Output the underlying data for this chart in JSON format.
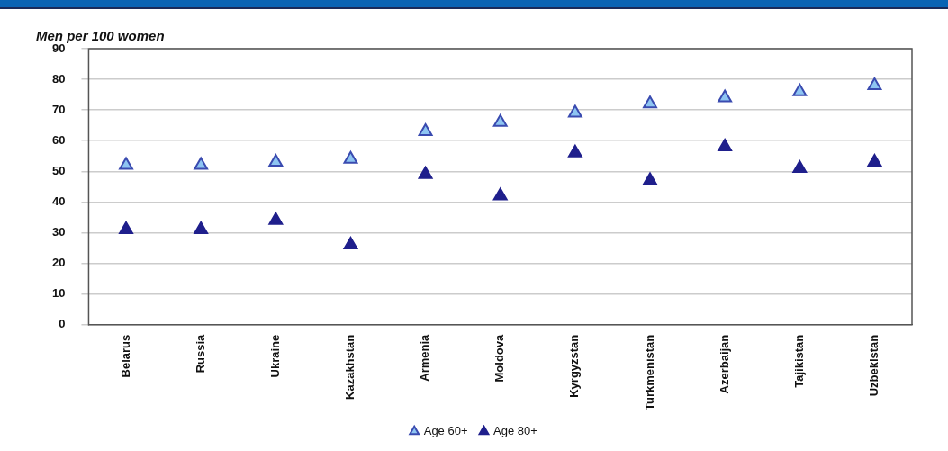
{
  "chart_data": {
    "type": "scatter",
    "title": "Men per 100 women",
    "categories": [
      "Belarus",
      "Russia",
      "Ukraine",
      "Kazakhstan",
      "Armenia",
      "Moldova",
      "Kyrgyzstan",
      "Turkmenistan",
      "Azerbaijan",
      "Tajikistan",
      "Uzbekistan"
    ],
    "series": [
      {
        "name": "Age 60+",
        "color": "#8ec5f2",
        "values": [
          52,
          52,
          53,
          54,
          63,
          66,
          69,
          72,
          74,
          76,
          78
        ]
      },
      {
        "name": "Age 80+",
        "color": "#1f1f8c",
        "values": [
          31,
          31,
          34,
          26,
          49,
          42,
          56,
          47,
          58,
          51,
          53
        ]
      }
    ],
    "ylim": [
      0,
      90
    ],
    "yticks": [
      0,
      10,
      20,
      30,
      40,
      50,
      60,
      70,
      80,
      90
    ],
    "grid": "y",
    "legend": "bottom",
    "marker": "triangle"
  }
}
